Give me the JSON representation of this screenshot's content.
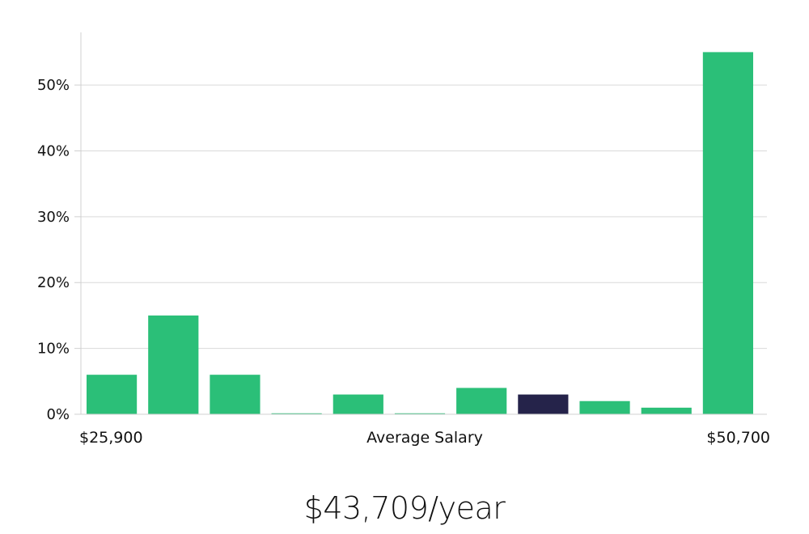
{
  "colors": {
    "bar": "#2bbf78",
    "highlight": "#25234a",
    "grid": "#d9d9d9",
    "axis": "#d0d0d0"
  },
  "chart_data": {
    "type": "bar",
    "title": "",
    "xlabel": "Average Salary",
    "ylabel": "",
    "x_start_label": "$25,900",
    "x_end_label": "$50,700",
    "values": [
      6,
      15,
      6,
      0,
      3,
      0,
      4,
      3,
      2,
      1,
      55
    ],
    "highlight_index": 7,
    "ylim": [
      0,
      58
    ],
    "yticks": [
      0,
      10,
      20,
      30,
      40,
      50
    ],
    "ytick_format": "%",
    "grid": true,
    "legend": "none"
  },
  "summary": {
    "average_salary": "$43,709/year"
  }
}
